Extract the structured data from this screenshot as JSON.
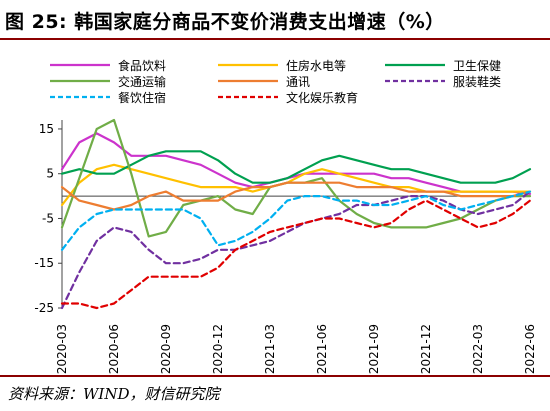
{
  "figure": {
    "title": "图 25:  韩国家庭分商品不变价消费支出增速（%）",
    "source": "资料来源：WIND，财信研究院"
  },
  "chart_data": {
    "type": "line",
    "x": [
      "2020-03",
      "2020-04",
      "2020-05",
      "2020-06",
      "2020-07",
      "2020-08",
      "2020-09",
      "2020-10",
      "2020-11",
      "2020-12",
      "2021-01",
      "2021-02",
      "2021-03",
      "2021-04",
      "2021-05",
      "2021-06",
      "2021-07",
      "2021-08",
      "2021-09",
      "2021-10",
      "2021-11",
      "2021-12",
      "2022-01",
      "2022-02",
      "2022-03",
      "2022-04",
      "2022-05",
      "2022-06"
    ],
    "xticks": [
      "2020-03",
      "2020-06",
      "2020-09",
      "2020-12",
      "2021-03",
      "2021-06",
      "2021-09",
      "2021-12",
      "2022-03",
      "2022-06"
    ],
    "yticks": [
      15,
      5,
      -5,
      -15,
      -25
    ],
    "ylim": [
      -25,
      17
    ],
    "grid": false,
    "legend_position": "top",
    "series": [
      {
        "name": "食品饮料",
        "color": "#cc33cc",
        "dash": "solid",
        "values": [
          6,
          12,
          14,
          12,
          9,
          9,
          9,
          8,
          7,
          5,
          3,
          2,
          3,
          4,
          5,
          5,
          5,
          5,
          5,
          4,
          4,
          3,
          2,
          1,
          1,
          1,
          1,
          0.5
        ]
      },
      {
        "name": "住房水电等",
        "color": "#ffc000",
        "dash": "solid",
        "values": [
          -2,
          3,
          6,
          7,
          6,
          5,
          4,
          3,
          2,
          2,
          2,
          1,
          2,
          3,
          5,
          6,
          5,
          4,
          3,
          2,
          2,
          1,
          1,
          1,
          1,
          1,
          1,
          1
        ]
      },
      {
        "name": "卫生保健",
        "color": "#00a050",
        "dash": "solid",
        "values": [
          5,
          6,
          5,
          5,
          7,
          9,
          10,
          10,
          10,
          8,
          5,
          3,
          3,
          4,
          6,
          8,
          9,
          8,
          7,
          6,
          6,
          5,
          4,
          3,
          3,
          3,
          4,
          6
        ]
      },
      {
        "name": "交通运输",
        "color": "#70ad47",
        "dash": "solid",
        "values": [
          -7,
          4,
          15,
          17,
          5,
          -9,
          -8,
          -2,
          -1,
          0,
          -3,
          -4,
          2,
          3,
          3,
          4,
          -1,
          -4,
          -6,
          -7,
          -7,
          -7,
          -6,
          -5,
          -3,
          -1,
          0,
          0
        ]
      },
      {
        "name": "通讯",
        "color": "#ed7d31",
        "dash": "solid",
        "values": [
          2,
          -1,
          -2,
          -3,
          -2,
          0,
          1,
          -1,
          -1,
          -1,
          1,
          2,
          2,
          3,
          3,
          3,
          3,
          2,
          2,
          2,
          1,
          1,
          1,
          0,
          0,
          0,
          0,
          1
        ]
      },
      {
        "name": "服装鞋类",
        "color": "#7030a0",
        "dash": "dash",
        "values": [
          -25,
          -17,
          -10,
          -7,
          -8,
          -12,
          -15,
          -15,
          -14,
          -12,
          -12,
          -11,
          -10,
          -8,
          -6,
          -5,
          -4,
          -2,
          -2,
          -1,
          0,
          0,
          -1,
          -3,
          -4,
          -3,
          -2,
          1
        ]
      },
      {
        "name": "餐饮住宿",
        "color": "#00b0f0",
        "dash": "dash",
        "values": [
          -12,
          -7,
          -4,
          -3,
          -3,
          -3,
          -3,
          -3,
          -5,
          -11,
          -10,
          -8,
          -5,
          -1,
          0,
          0,
          -1,
          -1,
          -2,
          -2,
          -1,
          0,
          -2,
          -3,
          -2,
          -1,
          0,
          1
        ]
      },
      {
        "name": "文化娱乐教育",
        "color": "#e00000",
        "dash": "dash",
        "values": [
          -24,
          -24,
          -25,
          -24,
          -21,
          -18,
          -18,
          -18,
          -18,
          -16,
          -12,
          -10,
          -8,
          -7,
          -6,
          -5,
          -5,
          -6,
          -7,
          -6,
          -3,
          -1,
          -3,
          -5,
          -7,
          -6,
          -4,
          -1
        ]
      }
    ]
  }
}
